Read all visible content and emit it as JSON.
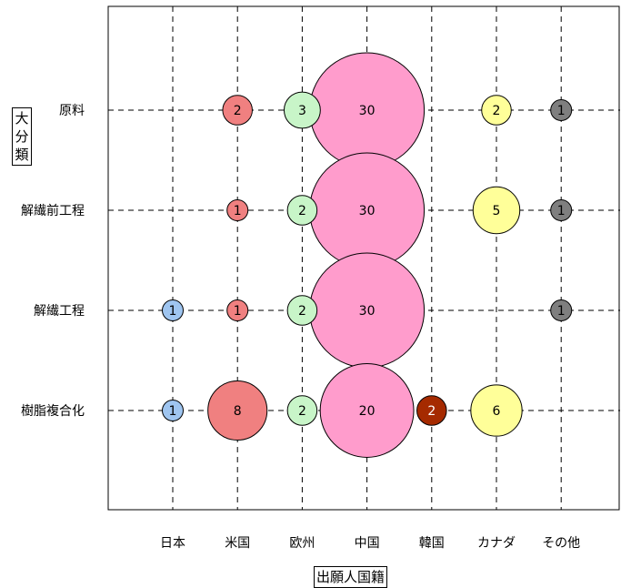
{
  "chart_data": {
    "type": "bubble",
    "xlabel": "出願人国籍",
    "ylabel": "大分類",
    "x_categories": [
      "日本",
      "米国",
      "欧州",
      "中国",
      "韓国",
      "カナダ",
      "その他"
    ],
    "y_categories": [
      "原料",
      "解繊前工程",
      "解繊工程",
      "樹脂複合化"
    ],
    "grid": true,
    "series_colors": {
      "日本": "#9fc5f0",
      "米国": "#f08080",
      "欧州": "#c8f5c8",
      "中国": "#ff9ccc",
      "韓国": "#a52a00",
      "カナダ": "#ffff99",
      "その他": "#7f7f7f"
    },
    "points": [
      {
        "x": "米国",
        "y": "原料",
        "value": 2
      },
      {
        "x": "欧州",
        "y": "原料",
        "value": 3
      },
      {
        "x": "中国",
        "y": "原料",
        "value": 30
      },
      {
        "x": "カナダ",
        "y": "原料",
        "value": 2
      },
      {
        "x": "その他",
        "y": "原料",
        "value": 1
      },
      {
        "x": "米国",
        "y": "解繊前工程",
        "value": 1
      },
      {
        "x": "欧州",
        "y": "解繊前工程",
        "value": 2
      },
      {
        "x": "中国",
        "y": "解繊前工程",
        "value": 30
      },
      {
        "x": "カナダ",
        "y": "解繊前工程",
        "value": 5
      },
      {
        "x": "その他",
        "y": "解繊前工程",
        "value": 1
      },
      {
        "x": "日本",
        "y": "解繊工程",
        "value": 1
      },
      {
        "x": "米国",
        "y": "解繊工程",
        "value": 1
      },
      {
        "x": "欧州",
        "y": "解繊工程",
        "value": 2
      },
      {
        "x": "中国",
        "y": "解繊工程",
        "value": 30
      },
      {
        "x": "その他",
        "y": "解繊工程",
        "value": 1
      },
      {
        "x": "日本",
        "y": "樹脂複合化",
        "value": 1
      },
      {
        "x": "米国",
        "y": "樹脂複合化",
        "value": 8
      },
      {
        "x": "欧州",
        "y": "樹脂複合化",
        "value": 2
      },
      {
        "x": "中国",
        "y": "樹脂複合化",
        "value": 20
      },
      {
        "x": "韓国",
        "y": "樹脂複合化",
        "value": 2
      },
      {
        "x": "カナダ",
        "y": "樹脂複合化",
        "value": 6
      }
    ]
  }
}
